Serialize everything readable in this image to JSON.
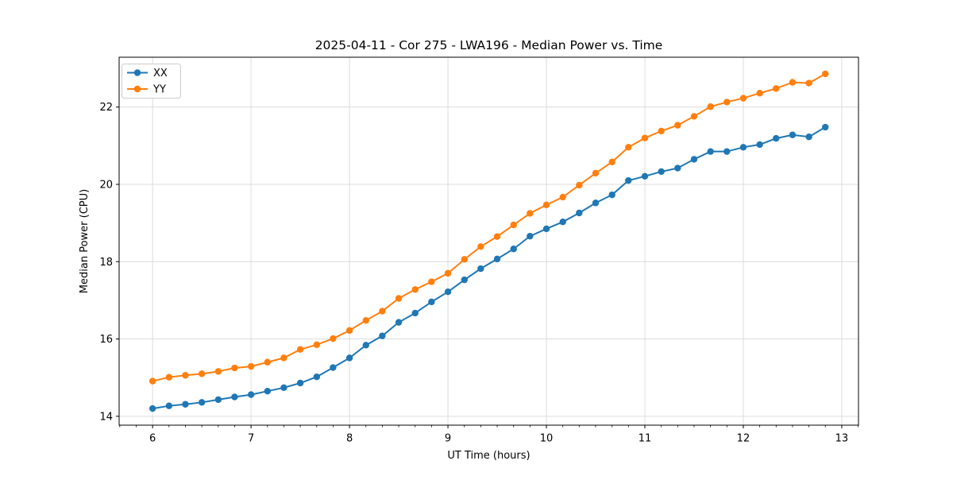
{
  "window": {
    "background": "#ffffff"
  },
  "chart_data": {
    "type": "line",
    "title": "2025-04-11 - Cor 275 - LWA196 - Median Power vs. Time",
    "xlabel": "UT Time (hours)",
    "ylabel": "Median Power (CPU)",
    "grid": true,
    "legend_position": "upper left",
    "marker": "circle",
    "xlim": [
      5.66,
      13.17
    ],
    "ylim": [
      13.77,
      23.29
    ],
    "xticks": [
      6,
      7,
      8,
      9,
      10,
      11,
      12,
      13
    ],
    "yticks": [
      14,
      16,
      18,
      20,
      22
    ],
    "x_minor_step_hours": 0.1667,
    "x": [
      6.0,
      6.167,
      6.333,
      6.5,
      6.667,
      6.833,
      7.0,
      7.167,
      7.333,
      7.5,
      7.667,
      7.833,
      8.0,
      8.167,
      8.333,
      8.5,
      8.667,
      8.833,
      9.0,
      9.167,
      9.333,
      9.5,
      9.667,
      9.833,
      10.0,
      10.167,
      10.333,
      10.5,
      10.667,
      10.833,
      11.0,
      11.167,
      11.333,
      11.5,
      11.667,
      11.833,
      12.0,
      12.167,
      12.333,
      12.5,
      12.667,
      12.833
    ],
    "series": [
      {
        "name": "XX",
        "color": "#1f77b4",
        "values": [
          14.2,
          14.27,
          14.31,
          14.36,
          14.43,
          14.5,
          14.56,
          14.65,
          14.74,
          14.86,
          15.02,
          15.26,
          15.51,
          15.84,
          16.08,
          16.43,
          16.67,
          16.96,
          17.22,
          17.53,
          17.82,
          18.07,
          18.33,
          18.66,
          18.85,
          19.03,
          19.26,
          19.52,
          19.73,
          20.1,
          20.21,
          20.33,
          20.42,
          20.65,
          20.85,
          20.85,
          20.96,
          21.03,
          21.19,
          21.28,
          21.23,
          21.48
        ]
      },
      {
        "name": "YY",
        "color": "#ff7f0e",
        "values": [
          14.91,
          15.01,
          15.06,
          15.1,
          15.16,
          15.25,
          15.29,
          15.4,
          15.51,
          15.73,
          15.85,
          16.01,
          16.22,
          16.48,
          16.72,
          17.05,
          17.28,
          17.48,
          17.7,
          18.06,
          18.39,
          18.65,
          18.95,
          19.25,
          19.47,
          19.67,
          19.98,
          20.29,
          20.58,
          20.96,
          21.2,
          21.38,
          21.53,
          21.76,
          22.01,
          22.13,
          22.23,
          22.36,
          22.48,
          22.64,
          22.62,
          22.86
        ]
      }
    ],
    "colors": {
      "grid": "#dcdcdc",
      "spine": "#000000",
      "tick": "#000000",
      "text": "#000000"
    }
  }
}
